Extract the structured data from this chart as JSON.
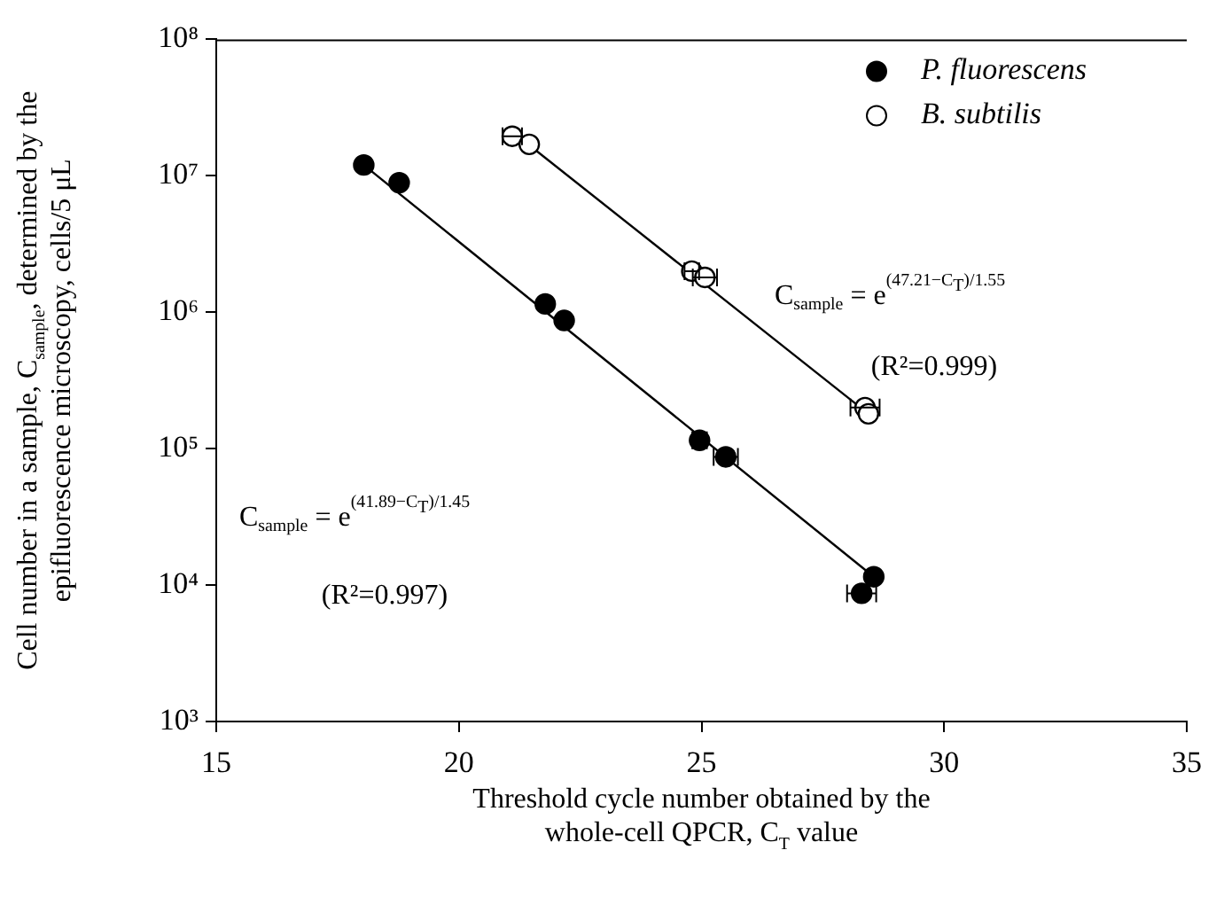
{
  "chart_data": {
    "type": "scatter",
    "xlabel": "Threshold cycle number obtained by the whole-cell QPCR, C$_{T}$ value",
    "ylabel": "Cell number in a sample, C$_{sample}$, determined by the epifluorescence microscopy, cells/5 μL",
    "series": [
      {
        "name": "P. fluorescens",
        "color": "#000000",
        "x": [
          18.04,
          18.77,
          21.78,
          22.17,
          24.96,
          25.5,
          28.55,
          28.3
        ],
        "values": [
          12000000,
          8900000,
          1150000,
          870000,
          115000,
          87000,
          11500,
          8700
        ],
        "xerrors": [
          null,
          null,
          null,
          null,
          0.15,
          0.25,
          null,
          0.3
        ]
      },
      {
        "name": "B. subtilis",
        "color": "#ffffff",
        "x": [
          21.1,
          21.45,
          24.8,
          25.07,
          28.37,
          28.44
        ],
        "values": [
          19500000,
          17000000,
          2000000,
          1800000,
          200000,
          180000
        ],
        "xerrors": [
          0.2,
          null,
          0.15,
          0.25,
          0.3,
          null
        ]
      },
      {
        "type": "line",
        "color": "#000000",
        "marker": "none",
        "x": [
          18.04,
          28.55
        ],
        "values": [
          12000000,
          11500
        ]
      },
      {
        "type": "line",
        "color": "#000000",
        "marker": "none",
        "x": [
          21.3,
          28.44
        ],
        "values": [
          18500000,
          180000
        ]
      }
    ],
    "annotations": [
      "C$_{sample}$ = e$^{(41.89−C}$$_{T}$$^{)/1.45}$",
      "(R²=0.997)",
      "C$_{sample}$ = e$^{(47.21−C}$$_{T}$$^{)/1.55}$",
      "(R²=0.999)"
    ],
    "xlim": [
      15,
      35
    ],
    "xticks": [
      15,
      20,
      25,
      30,
      35
    ],
    "ylim": [
      1000,
      100000000
    ],
    "yticks": [
      {
        "value": 1000,
        "label": "10³"
      },
      {
        "value": 10000,
        "label": "10⁴"
      },
      {
        "value": 100000,
        "label": "10⁵"
      },
      {
        "value": 1000000,
        "label": "10⁶"
      },
      {
        "value": 10000000,
        "label": "10⁷"
      },
      {
        "value": 100000000,
        "label": "10⁸"
      }
    ],
    "log": "y",
    "grid": false,
    "legend": "top right",
    "marker": "circle",
    "line_style": "solid"
  }
}
